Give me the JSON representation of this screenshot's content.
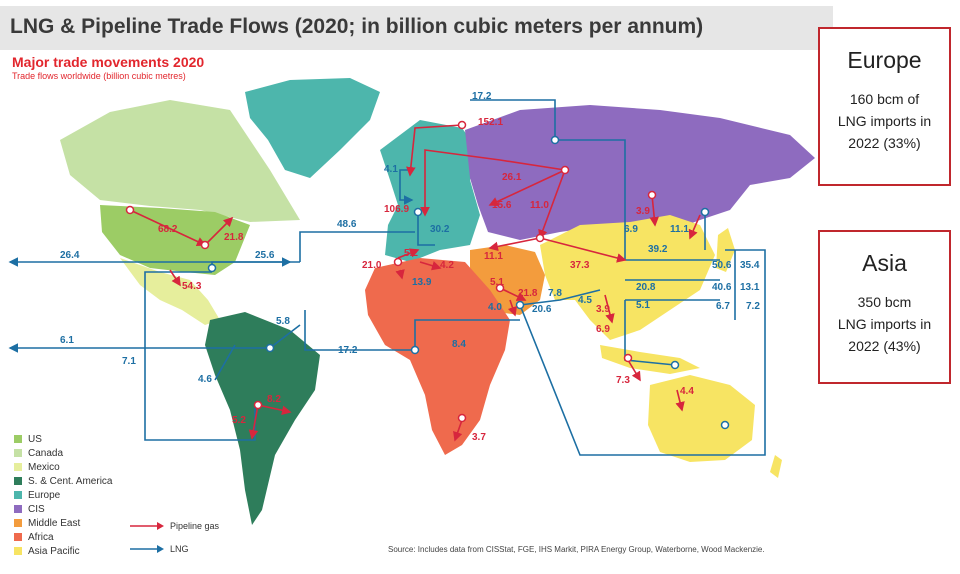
{
  "header": {
    "title": "LNG & Pipeline Trade Flows (2020; in billion cubic meters per annum)"
  },
  "map": {
    "title": "Major trade movements 2020",
    "subtitle": "Trade flows worldwide (billion cubic metres)",
    "flow_labels": {
      "us_pipe": "68.2",
      "us_mex": "21.8",
      "mex": "54.3",
      "us_lng_europe": "25.6",
      "atlantic": "26.4",
      "transatl": "48.6",
      "pacific_sa": "6.1",
      "sa_lng": "7.1",
      "carib": "5.8",
      "sa_46": "4.6",
      "sa_82": "8.2",
      "sa_52": "5.2",
      "africa_lng": "17.2",
      "africa_84": "8.4",
      "moz": "3.7",
      "n_africa_21": "21.0",
      "n_africa_52": "5.2",
      "n_africa_139": "13.9",
      "n_africa_42": "4.2",
      "eu_302": "30.2",
      "eu_1069": "106.9",
      "eu_41": "4.1",
      "arctic_172": "17.2",
      "russia_1521": "152.1",
      "cis_261": "26.1",
      "cis_156": "15.6",
      "cis_110": "11.0",
      "cis_111": "11.1",
      "me_51": "5.1",
      "me_218": "21.8",
      "me_40": "4.0",
      "me_78": "7.8",
      "me_206": "20.6",
      "me_45": "4.5",
      "china_373": "37.3",
      "sea_39": "3.9",
      "sea_69": "6.9",
      "sea_73": "7.3",
      "aus_44": "4.4",
      "cn_39": "3.9",
      "rus_69": "6.9",
      "rus_111": "11.1",
      "ap_392": "39.2",
      "ap_208": "20.8",
      "ap_51": "5.1",
      "ap_506": "50.6",
      "ap_354": "35.4",
      "ap_406": "40.6",
      "ap_131": "13.1",
      "ap_67": "6.7",
      "ap_72": "7.2"
    },
    "legend": [
      {
        "label": "US",
        "color": "#9ccc65"
      },
      {
        "label": "Canada",
        "color": "#c5e1a5"
      },
      {
        "label": "Mexico",
        "color": "#e6ee9c"
      },
      {
        "label": "S. & Cent. America",
        "color": "#2e7d5b"
      },
      {
        "label": "Europe",
        "color": "#4db6ac"
      },
      {
        "label": "CIS",
        "color": "#8e6bbf"
      },
      {
        "label": "Middle East",
        "color": "#f39c3d"
      },
      {
        "label": "Africa",
        "color": "#ef6a4d"
      },
      {
        "label": "Asia Pacific",
        "color": "#f7e463"
      }
    ],
    "flow_legend": {
      "pipeline": "Pipeline gas",
      "lng": "LNG"
    },
    "source": "Source: Includes data from CISStat, FGE, IHS Markit, PIRA Energy Group, Waterborne, Wood Mackenzie.",
    "colors": {
      "lng": "#1d6fa3",
      "pipeline": "#d7263d"
    }
  },
  "callouts": {
    "europe": {
      "region": "Europe",
      "line1": "160 bcm of",
      "line2": "LNG imports in",
      "line3": "2022 (33%)"
    },
    "asia": {
      "region": "Asia",
      "line1": "350 bcm",
      "line2": "LNG imports in",
      "line3": "2022 (43%)"
    }
  }
}
